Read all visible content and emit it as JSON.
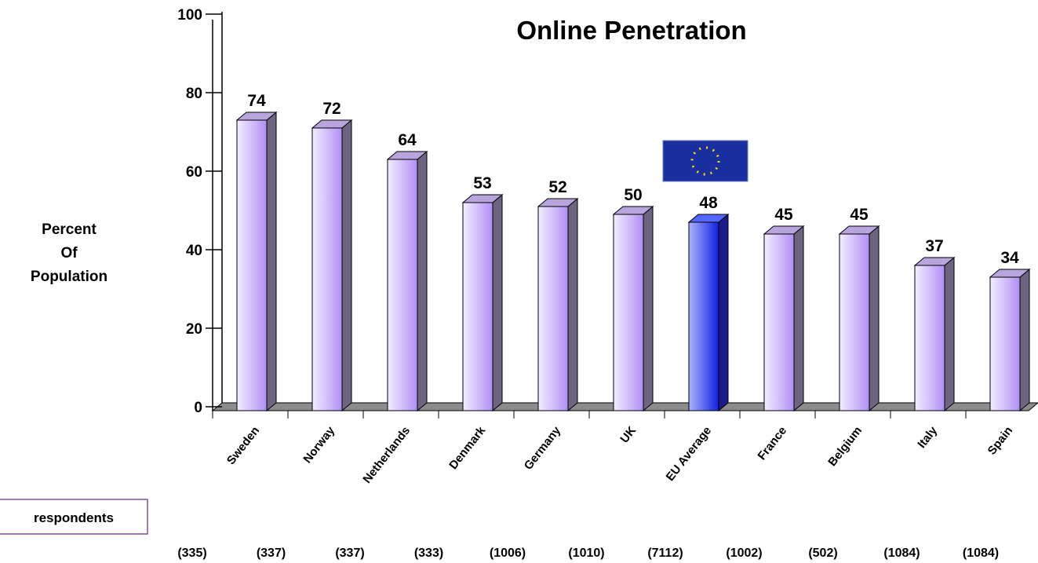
{
  "chart_data": {
    "type": "bar3d",
    "title": "Online Penetration",
    "ylabel": [
      "Percent",
      "Of",
      "Population"
    ],
    "categories": [
      "Sweden",
      "Norway",
      "Netherlands",
      "Denmark",
      "Germany",
      "UK",
      "EU Average",
      "France",
      "Belgium",
      "Italy",
      "Spain"
    ],
    "values": [
      74,
      72,
      64,
      53,
      52,
      50,
      48,
      45,
      45,
      37,
      34
    ],
    "colors": [
      "#c9a9ff",
      "#c9a9ff",
      "#c9a9ff",
      "#c9a9ff",
      "#c9a9ff",
      "#c9a9ff",
      "#2233ff",
      "#c9a9ff",
      "#c9a9ff",
      "#c9a9ff",
      "#c9a9ff"
    ],
    "ylim": [
      0,
      100
    ],
    "yticks": [
      0,
      20,
      40,
      60,
      80,
      100
    ],
    "legend_box": "respondents",
    "respondent_counts": [
      "(335)",
      "(337)",
      "(337)",
      "(333)",
      "(1006)",
      "(1010)",
      "(7112)",
      "(1002)",
      "(502)",
      "(1084)",
      "(1084)"
    ]
  }
}
